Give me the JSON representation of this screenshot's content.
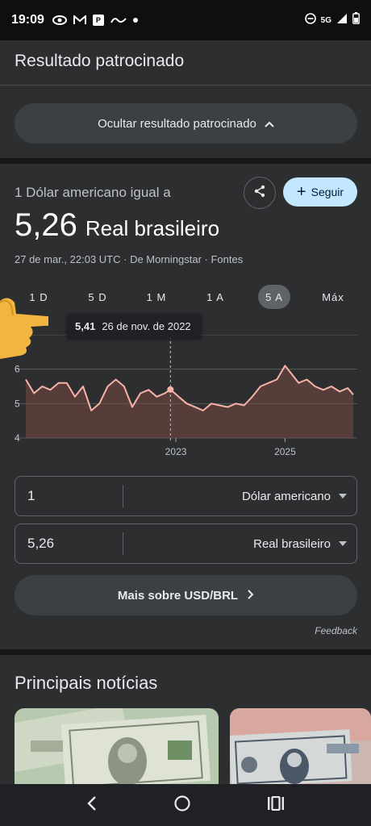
{
  "status_bar": {
    "time": "19:09",
    "network": "5G"
  },
  "sponsored": {
    "title": "Resultado patrocinado",
    "hide_button": "Ocultar resultado patrocinado"
  },
  "currency": {
    "subtitle": "1 Dólar americano igual a",
    "value": "5,26",
    "currency_name": "Real brasileiro",
    "meta": "27 de mar., 22:03 UTC · De Morningstar · Fontes",
    "follow_label": "Seguir",
    "ranges": [
      "1 D",
      "5 D",
      "1 M",
      "1 A",
      "5 A",
      "Máx"
    ],
    "active_range": "5 A",
    "tooltip": {
      "value": "5,41",
      "date": "26 de nov. de 2022"
    },
    "from": {
      "amount": "1",
      "unit": "Dólar americano"
    },
    "to": {
      "amount": "5,26",
      "unit": "Real brasileiro"
    },
    "more_button": "Mais sobre USD/BRL",
    "feedback": "Feedback"
  },
  "news": {
    "title": "Principais notícias"
  },
  "colors": {
    "line": "#f6b3a6",
    "area": "#7a4a44",
    "follow_bg": "#c2e7ff"
  },
  "chart_data": {
    "type": "area",
    "ylim": [
      4,
      7
    ],
    "y_ticks": [
      4,
      5,
      6
    ],
    "x_tick_labels": [
      "2023",
      "2025"
    ],
    "x": [
      2020.25,
      2020.4,
      2020.55,
      2020.7,
      2020.85,
      2021.0,
      2021.15,
      2021.3,
      2021.45,
      2021.6,
      2021.75,
      2021.9,
      2022.05,
      2022.2,
      2022.35,
      2022.5,
      2022.65,
      2022.8,
      2022.9,
      2023.05,
      2023.2,
      2023.35,
      2023.5,
      2023.65,
      2023.8,
      2023.95,
      2024.1,
      2024.25,
      2024.4,
      2024.55,
      2024.7,
      2024.85,
      2025.0,
      2025.1,
      2025.25,
      2025.4,
      2025.55,
      2025.7,
      2025.85,
      2026.0,
      2026.15,
      2026.25
    ],
    "values": [
      5.7,
      5.3,
      5.5,
      5.4,
      5.6,
      5.6,
      5.2,
      5.5,
      4.8,
      5.0,
      5.5,
      5.7,
      5.5,
      4.9,
      5.3,
      5.4,
      5.2,
      5.3,
      5.41,
      5.2,
      5.0,
      4.9,
      4.8,
      5.0,
      4.95,
      4.9,
      5.0,
      4.95,
      5.2,
      5.5,
      5.6,
      5.7,
      6.1,
      5.9,
      5.6,
      5.7,
      5.5,
      5.4,
      5.5,
      5.35,
      5.45,
      5.26
    ],
    "cursor_x": 2022.9
  }
}
